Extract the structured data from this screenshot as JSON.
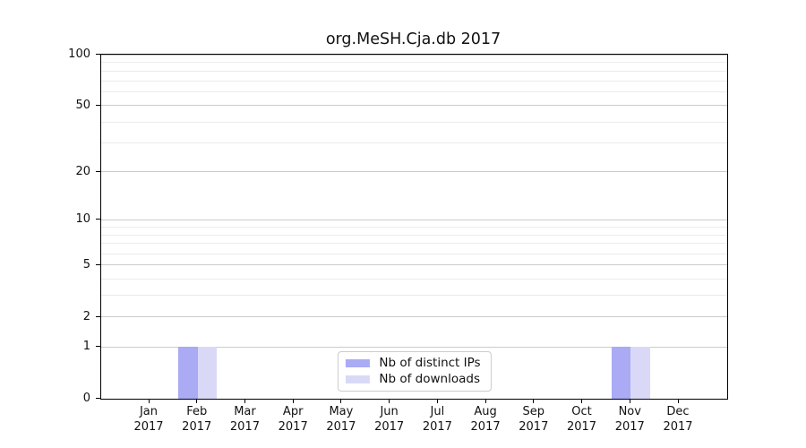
{
  "chart_data": {
    "type": "bar",
    "title": "org.MeSH.Cja.db 2017",
    "categories": [
      "Jan",
      "Feb",
      "Mar",
      "Apr",
      "May",
      "Jun",
      "Jul",
      "Aug",
      "Sep",
      "Oct",
      "Nov",
      "Dec"
    ],
    "year_label": "2017",
    "series": [
      {
        "name": "Nb of distinct IPs",
        "color": "#aaaaf5",
        "values": [
          0,
          1,
          0,
          0,
          0,
          0,
          0,
          0,
          0,
          0,
          1,
          0
        ]
      },
      {
        "name": "Nb of downloads",
        "color": "#d9d9f7",
        "values": [
          0,
          1,
          0,
          0,
          0,
          0,
          0,
          0,
          0,
          0,
          1,
          0
        ]
      }
    ],
    "xlabel": "",
    "ylabel": "",
    "yscale": "log1p",
    "ylim": [
      0,
      100
    ],
    "yticks": [
      0,
      1,
      2,
      5,
      10,
      20,
      50,
      100
    ],
    "minor_gridlines": [
      3,
      4,
      6,
      7,
      8,
      9,
      30,
      40,
      60,
      70,
      80,
      90
    ],
    "grid": "horizontal",
    "legend_position": "bottom-center"
  }
}
